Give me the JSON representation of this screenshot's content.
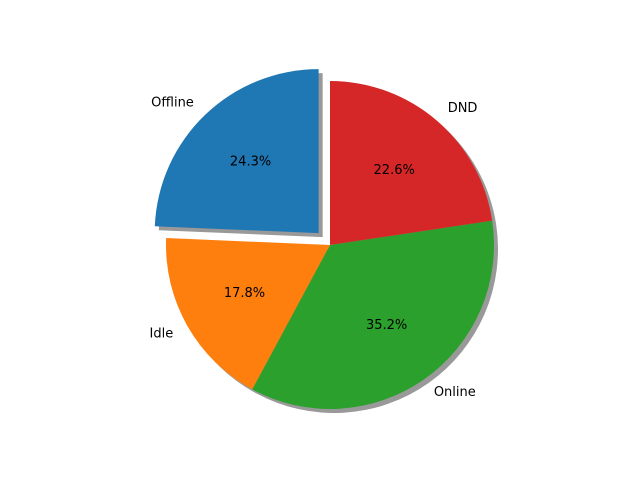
{
  "chart_data": {
    "type": "pie",
    "start_angle_deg": 90,
    "direction": "counterclockwise",
    "shadow": true,
    "slices": [
      {
        "label": "Offline",
        "value": 24.3,
        "pct_label": "24.3%",
        "color": "#1f77b4",
        "exploded": true
      },
      {
        "label": "Idle",
        "value": 17.8,
        "pct_label": "17.8%",
        "color": "#ff7f0e",
        "exploded": false
      },
      {
        "label": "Online",
        "value": 35.2,
        "pct_label": "35.2%",
        "color": "#2ca02c",
        "exploded": false
      },
      {
        "label": "DND",
        "value": 22.6,
        "pct_label": "22.6%",
        "color": "#d62728",
        "exploded": false
      }
    ]
  }
}
